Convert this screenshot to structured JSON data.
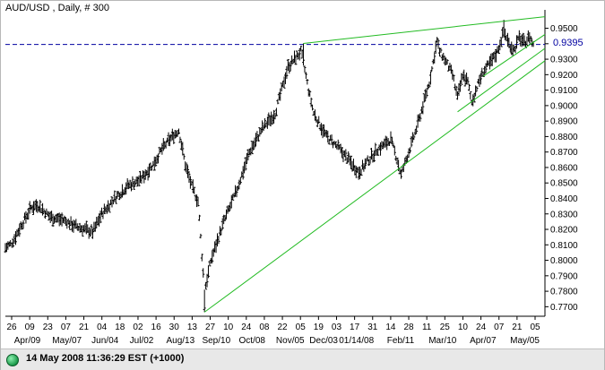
{
  "window": {
    "status_text": "14 May 2008 11:36:29 EST (+1000)",
    "status_color": "#22aa55"
  },
  "chart_data": {
    "type": "ohlc",
    "title": "AUD/USD , Daily, # 300",
    "current_price_label": "0.9395",
    "current_price": 0.9395,
    "ylim": [
      0.765,
      0.959
    ],
    "y_ticks": [
      0.77,
      0.78,
      0.79,
      0.8,
      0.81,
      0.82,
      0.83,
      0.84,
      0.85,
      0.86,
      0.87,
      0.88,
      0.89,
      0.9,
      0.91,
      0.92,
      0.93,
      0.94,
      0.95
    ],
    "y_tick_labels": [
      "0.7700",
      "0.7800",
      "0.7900",
      "0.8000",
      "0.8100",
      "0.8200",
      "0.8300",
      "0.8400",
      "0.8500",
      "0.8600",
      "0.8700",
      "0.8800",
      "0.8900",
      "0.9000",
      "0.9100",
      "0.9200",
      "0.9300",
      "0.9400",
      "0.9500"
    ],
    "x_day_labels": [
      "26",
      "09",
      "23",
      "07",
      "21",
      "04",
      "18",
      "02",
      "16",
      "30",
      "13",
      "27",
      "10",
      "24",
      "08",
      "22",
      "05",
      "19",
      "03",
      "17",
      "31",
      "14",
      "28",
      "11",
      "25",
      "10",
      "24",
      "07",
      "21",
      "05"
    ],
    "x_month_labels": [
      "Apr/09",
      "May/07",
      "Jun/04",
      "Jul/02",
      "Aug/13",
      "Sep/10",
      "Oct/08",
      "Nov/05",
      "Dec/03",
      "01/14/08",
      "Feb/11",
      "Mar/10",
      "Apr/07",
      "May/05"
    ],
    "price_path": [
      [
        0,
        0.808
      ],
      [
        5,
        0.811
      ],
      [
        12,
        0.822
      ],
      [
        20,
        0.834
      ],
      [
        25,
        0.836
      ],
      [
        35,
        0.828
      ],
      [
        45,
        0.826
      ],
      [
        55,
        0.822
      ],
      [
        62,
        0.82
      ],
      [
        68,
        0.818
      ],
      [
        75,
        0.83
      ],
      [
        85,
        0.84
      ],
      [
        95,
        0.848
      ],
      [
        105,
        0.852
      ],
      [
        115,
        0.862
      ],
      [
        122,
        0.872
      ],
      [
        130,
        0.88
      ],
      [
        135,
        0.884
      ],
      [
        140,
        0.862
      ],
      [
        145,
        0.848
      ],
      [
        150,
        0.838
      ],
      [
        152,
        0.815
      ],
      [
        155,
        0.78
      ],
      [
        160,
        0.8
      ],
      [
        170,
        0.825
      ],
      [
        180,
        0.845
      ],
      [
        190,
        0.87
      ],
      [
        200,
        0.885
      ],
      [
        210,
        0.895
      ],
      [
        215,
        0.91
      ],
      [
        220,
        0.925
      ],
      [
        225,
        0.93
      ],
      [
        230,
        0.935
      ],
      [
        232,
        0.928
      ],
      [
        236,
        0.91
      ],
      [
        240,
        0.895
      ],
      [
        250,
        0.88
      ],
      [
        260,
        0.872
      ],
      [
        270,
        0.862
      ],
      [
        275,
        0.857
      ],
      [
        280,
        0.862
      ],
      [
        290,
        0.872
      ],
      [
        300,
        0.878
      ],
      [
        305,
        0.865
      ],
      [
        308,
        0.855
      ],
      [
        312,
        0.865
      ],
      [
        320,
        0.885
      ],
      [
        325,
        0.9
      ],
      [
        330,
        0.915
      ],
      [
        333,
        0.928
      ],
      [
        336,
        0.942
      ],
      [
        338,
        0.935
      ],
      [
        342,
        0.93
      ],
      [
        348,
        0.92
      ],
      [
        352,
        0.905
      ],
      [
        356,
        0.92
      ],
      [
        360,
        0.915
      ],
      [
        363,
        0.902
      ],
      [
        367,
        0.912
      ],
      [
        372,
        0.922
      ],
      [
        378,
        0.928
      ],
      [
        383,
        0.935
      ],
      [
        388,
        0.948
      ],
      [
        392,
        0.94
      ],
      [
        396,
        0.936
      ],
      [
        400,
        0.944
      ],
      [
        404,
        0.94
      ],
      [
        408,
        0.945
      ],
      [
        411,
        0.939
      ]
    ],
    "trendlines": [
      {
        "x0": 155,
        "y0": 0.7665,
        "x1": 420,
        "y1": 0.929,
        "extend": true
      },
      {
        "x0": 232,
        "y0": 0.9402,
        "x1": 420,
        "y1": 0.9575
      },
      {
        "x0": 352,
        "y0": 0.896,
        "x1": 420,
        "y1": 0.937
      },
      {
        "x0": 372,
        "y0": 0.919,
        "x1": 420,
        "y1": 0.946
      }
    ],
    "grid": false,
    "colors": {
      "bars": "#000000",
      "trendline": "#22bb22",
      "price_line": "#0000a0"
    }
  }
}
